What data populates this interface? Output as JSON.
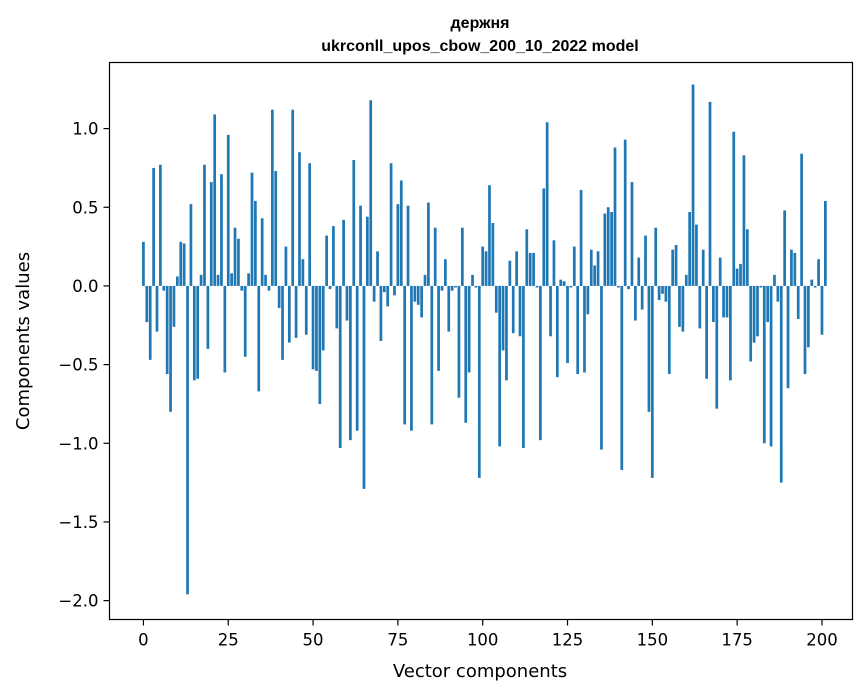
{
  "chart_data": {
    "type": "bar",
    "title": "держня",
    "subtitle": "ukrconll_upos_cbow_200_10_2022 model",
    "xlabel": "Vector components",
    "ylabel": "Components values",
    "xlim": [
      -10,
      209
    ],
    "ylim": [
      -2.12,
      1.42
    ],
    "xticks": [
      0,
      25,
      50,
      75,
      100,
      125,
      150,
      175,
      200
    ],
    "yticks": [
      -2.0,
      -1.5,
      -1.0,
      -0.5,
      0.0,
      0.5,
      1.0
    ],
    "ytick_labels": [
      "−2.0",
      "−1.5",
      "−1.0",
      "−0.5",
      "0.0",
      "0.5",
      "1.0"
    ],
    "bar_color": "#1f77b4",
    "grid": false,
    "values": [
      0.28,
      -0.23,
      -0.47,
      0.75,
      -0.29,
      0.77,
      -0.03,
      -0.56,
      -0.8,
      -0.26,
      0.06,
      0.28,
      0.27,
      -1.96,
      0.52,
      -0.6,
      -0.59,
      0.07,
      0.77,
      -0.4,
      0.66,
      1.09,
      0.07,
      0.71,
      -0.55,
      0.96,
      0.08,
      0.37,
      0.3,
      -0.03,
      -0.45,
      0.08,
      0.72,
      0.54,
      -0.67,
      0.43,
      0.07,
      -0.03,
      1.12,
      0.73,
      -0.14,
      -0.47,
      0.25,
      -0.36,
      1.12,
      -0.33,
      0.85,
      0.17,
      -0.31,
      0.78,
      -0.53,
      -0.54,
      -0.75,
      -0.41,
      0.32,
      -0.02,
      0.38,
      -0.27,
      -1.03,
      0.42,
      -0.22,
      -0.98,
      0.8,
      -0.92,
      0.51,
      -1.29,
      0.44,
      1.18,
      -0.1,
      0.22,
      -0.35,
      -0.04,
      -0.13,
      0.78,
      -0.06,
      0.52,
      0.67,
      -0.88,
      0.51,
      -0.92,
      -0.1,
      -0.12,
      -0.2,
      0.07,
      0.53,
      -0.88,
      0.37,
      -0.54,
      -0.03,
      0.17,
      -0.29,
      -0.03,
      -0.01,
      -0.71,
      0.37,
      -0.87,
      -0.55,
      0.07,
      -0.01,
      -1.22,
      0.25,
      0.22,
      0.64,
      0.4,
      -0.17,
      -1.02,
      -0.41,
      -0.6,
      0.16,
      -0.3,
      0.22,
      -0.32,
      -1.03,
      0.36,
      0.21,
      0.21,
      -0.01,
      -0.98,
      0.62,
      1.04,
      -0.32,
      0.29,
      -0.58,
      0.04,
      0.03,
      -0.49,
      -0.01,
      0.25,
      -0.56,
      0.61,
      -0.55,
      -0.18,
      0.23,
      0.13,
      0.22,
      -1.04,
      0.46,
      0.5,
      0.47,
      0.88,
      -0.01,
      -1.17,
      0.93,
      -0.02,
      0.66,
      -0.22,
      0.18,
      -0.15,
      0.32,
      -0.8,
      -1.22,
      0.37,
      -0.09,
      -0.05,
      -0.1,
      -0.56,
      0.23,
      0.26,
      -0.26,
      -0.29,
      0.07,
      0.47,
      1.28,
      0.39,
      -0.27,
      0.23,
      -0.59,
      1.17,
      -0.23,
      -0.78,
      0.18,
      -0.2,
      -0.2,
      -0.6,
      0.98,
      0.11,
      0.14,
      0.83,
      0.36,
      -0.48,
      -0.36,
      -0.32,
      -0.01,
      -1.0,
      -0.23,
      -1.02,
      0.07,
      -0.1,
      -1.25,
      0.48,
      -0.65,
      0.23,
      0.21,
      -0.21,
      0.84,
      -0.56,
      -0.39,
      0.04,
      -0.01,
      0.17,
      -0.31,
      0.54
    ]
  }
}
